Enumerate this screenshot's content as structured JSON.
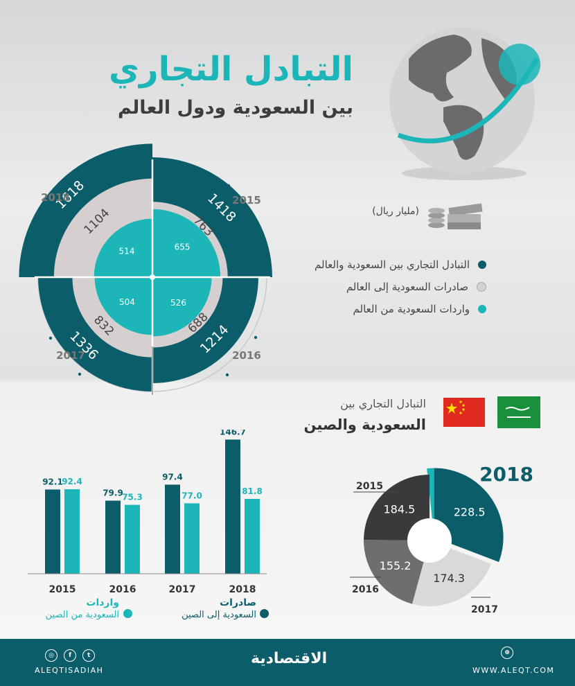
{
  "header": {
    "title": "التبادل التجاري",
    "subtitle": "بين السعودية ودول العالم"
  },
  "unit": "(مليار ريال)",
  "legend_world": [
    {
      "label": "التبادل التجاري بين السعودية والعالم",
      "color": "#0c5d6a"
    },
    {
      "label": "صادرات السعودية إلى العالم",
      "color": "#d5cfcf"
    },
    {
      "label": "واردات السعودية من العالم",
      "color": "#1cb6b8"
    }
  ],
  "china": {
    "title_line1": "التبادل التجاري بين",
    "title_line2": "السعودية والصين"
  },
  "bar_legend": {
    "exports_title": "صادرات",
    "exports_sub": "السعودية إلى الصين",
    "imports_title": "واردات",
    "imports_sub": "السعودية من الصين"
  },
  "colors": {
    "dark_teal": "#0c5d6a",
    "teal": "#1cb6b8",
    "light_gray": "#d5cfcf",
    "dark_gray": "#3a3a3c",
    "mid_gray": "#6e6e70",
    "pale_gray": "#d9d9d9"
  },
  "chart_data": [
    {
      "type": "radial_bar",
      "categories": [
        "2015",
        "2016",
        "2017",
        "2018"
      ],
      "series": [
        {
          "name": "التبادل التجاري بين السعودية والعالم",
          "values": [
            1418,
            1214,
            1336,
            1618
          ]
        },
        {
          "name": "صادرات السعودية إلى العالم",
          "values": [
            763,
            688,
            832,
            1104
          ]
        },
        {
          "name": "واردات السعودية من العالم",
          "values": [
            655,
            526,
            504,
            514
          ]
        }
      ]
    },
    {
      "type": "bar",
      "categories": [
        "2015",
        "2016",
        "2017",
        "2018"
      ],
      "series": [
        {
          "name": "صادرات السعودية إلى الصين",
          "values": [
            92.1,
            79.9,
            97.4,
            146.7
          ]
        },
        {
          "name": "واردات السعودية من الصين",
          "values": [
            92.4,
            75.3,
            77.0,
            81.8
          ]
        }
      ]
    },
    {
      "type": "pie",
      "title": "2018",
      "labels": [
        "2018",
        "2017",
        "2016",
        "2015"
      ],
      "values": [
        228.5,
        174.3,
        155.2,
        184.5
      ]
    }
  ],
  "footer": {
    "handle": "ALEQTISADIAH",
    "brand": "الاقتصادية",
    "website": "WWW.ALEQT.COM",
    "social_icons": [
      "instagram-icon",
      "facebook-icon",
      "twitter-icon"
    ]
  }
}
